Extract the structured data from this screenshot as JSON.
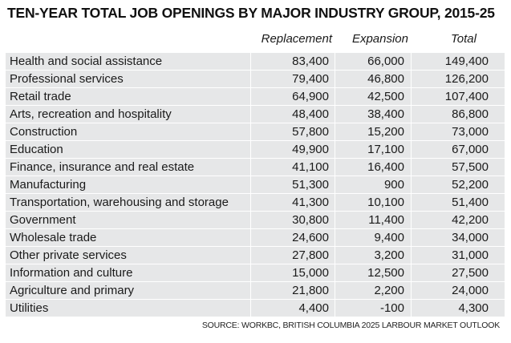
{
  "title": "TEN-YEAR TOTAL JOB OPENINGS BY MAJOR INDUSTRY GROUP, 2015-25",
  "columns": [
    "Replacement",
    "Expansion",
    "Total"
  ],
  "rows": [
    {
      "industry": "Health and social assistance",
      "replacement": "83,400",
      "expansion": "66,000",
      "total": "149,400"
    },
    {
      "industry": "Professional services",
      "replacement": "79,400",
      "expansion": "46,800",
      "total": "126,200"
    },
    {
      "industry": "Retail trade",
      "replacement": "64,900",
      "expansion": "42,500",
      "total": "107,400"
    },
    {
      "industry": "Arts, recreation and hospitality",
      "replacement": "48,400",
      "expansion": "38,400",
      "total": "86,800"
    },
    {
      "industry": "Construction",
      "replacement": "57,800",
      "expansion": "15,200",
      "total": "73,000"
    },
    {
      "industry": "Education",
      "replacement": "49,900",
      "expansion": "17,100",
      "total": "67,000"
    },
    {
      "industry": "Finance, insurance and real estate",
      "replacement": "41,100",
      "expansion": "16,400",
      "total": "57,500"
    },
    {
      "industry": "Manufacturing",
      "replacement": "51,300",
      "expansion": "900",
      "total": "52,200"
    },
    {
      "industry": "Transportation, warehousing and storage",
      "replacement": "41,300",
      "expansion": "10,100",
      "total": "51,400"
    },
    {
      "industry": "Government",
      "replacement": "30,800",
      "expansion": "11,400",
      "total": "42,200"
    },
    {
      "industry": "Wholesale trade",
      "replacement": "24,600",
      "expansion": "9,400",
      "total": "34,000"
    },
    {
      "industry": "Other private services",
      "replacement": "27,800",
      "expansion": "3,200",
      "total": "31,000"
    },
    {
      "industry": "Information and culture",
      "replacement": "15,000",
      "expansion": "12,500",
      "total": "27,500"
    },
    {
      "industry": "Agriculture and primary",
      "replacement": "21,800",
      "expansion": "2,200",
      "total": "24,000"
    },
    {
      "industry": "Utilities",
      "replacement": "4,400",
      "expansion": "-100",
      "total": "4,300"
    }
  ],
  "source": "SOURCE: WORKBC, BRITISH COLUMBIA 2025 LARBOUR MARKET OUTLOOK",
  "chart_data": {
    "type": "table",
    "title": "TEN-YEAR TOTAL JOB OPENINGS BY MAJOR INDUSTRY GROUP, 2015-25",
    "columns": [
      "Replacement",
      "Expansion",
      "Total"
    ],
    "categories": [
      "Health and social assistance",
      "Professional services",
      "Retail trade",
      "Arts, recreation and hospitality",
      "Construction",
      "Education",
      "Finance, insurance and real estate",
      "Manufacturing",
      "Transportation, warehousing and storage",
      "Government",
      "Wholesale trade",
      "Other private services",
      "Information and culture",
      "Agriculture and primary",
      "Utilities"
    ],
    "series": [
      {
        "name": "Replacement",
        "values": [
          83400,
          79400,
          64900,
          48400,
          57800,
          49900,
          41100,
          51300,
          41300,
          30800,
          24600,
          27800,
          15000,
          21800,
          4400
        ]
      },
      {
        "name": "Expansion",
        "values": [
          66000,
          46800,
          42500,
          38400,
          15200,
          17100,
          16400,
          900,
          10100,
          11400,
          9400,
          3200,
          12500,
          2200,
          -100
        ]
      },
      {
        "name": "Total",
        "values": [
          149400,
          126200,
          107400,
          86800,
          73000,
          67000,
          57500,
          52200,
          51400,
          42200,
          34000,
          31000,
          27500,
          24000,
          4300
        ]
      }
    ]
  }
}
